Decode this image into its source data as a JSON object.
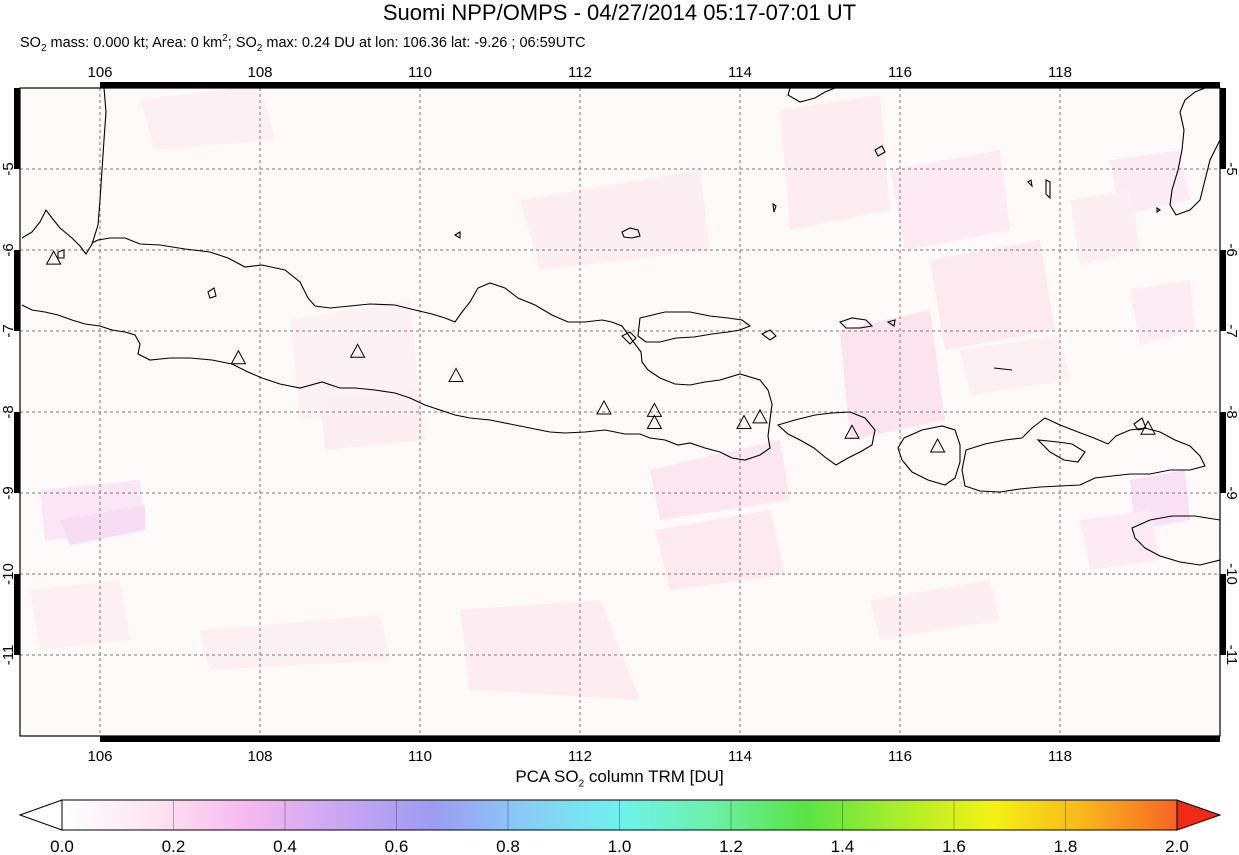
{
  "title": "Suomi NPP/OMPS - 04/27/2014 05:17-07:01 UT",
  "subtitle": {
    "so2_prefix": "SO",
    "sub2": "2",
    "mass_text": " mass: 0.000 kt; Area: 0 km",
    "sup2": "2",
    "max_prefix": "; SO",
    "max_text": " max: 0.24 DU at lon: 106.36 lat: -9.26 ; 06:59UTC"
  },
  "map": {
    "lon_range": [
      105.0,
      120.0
    ],
    "lat_range": [
      -12.0,
      -4.0
    ],
    "lon_ticks": [
      106,
      108,
      110,
      112,
      114,
      116,
      118
    ],
    "lat_ticks": [
      -5,
      -6,
      -7,
      -8,
      -9,
      -10,
      -11
    ],
    "grid": true,
    "volcanoes": [
      {
        "lon": 105.42,
        "lat": -6.1
      },
      {
        "lon": 107.73,
        "lat": -7.33
      },
      {
        "lon": 109.22,
        "lat": -7.25
      },
      {
        "lon": 110.45,
        "lat": -7.55
      },
      {
        "lon": 112.3,
        "lat": -7.95
      },
      {
        "lon": 112.93,
        "lat": -7.98
      },
      {
        "lon": 112.93,
        "lat": -8.13
      },
      {
        "lon": 114.05,
        "lat": -8.13
      },
      {
        "lon": 114.25,
        "lat": -8.06
      },
      {
        "lon": 115.4,
        "lat": -8.25
      },
      {
        "lon": 116.47,
        "lat": -8.42
      },
      {
        "lon": 119.1,
        "lat": -8.2
      }
    ]
  },
  "colorbar": {
    "title_prefix": "PCA SO",
    "title_sub": "2",
    "title_suffix": " column TRM [DU]",
    "tick_labels": [
      "0.0",
      "0.2",
      "0.4",
      "0.6",
      "0.8",
      "1.0",
      "1.2",
      "1.4",
      "1.6",
      "1.8",
      "2.0"
    ],
    "colors": [
      "#ffffff",
      "#fde4f0",
      "#f6b8f0",
      "#c9a6f2",
      "#9c9cf2",
      "#88ccf6",
      "#6ef2ee",
      "#6cf0a8",
      "#58e444",
      "#a8ee2c",
      "#f4f214",
      "#f8b61c",
      "#f86424",
      "#f02a14"
    ]
  }
}
